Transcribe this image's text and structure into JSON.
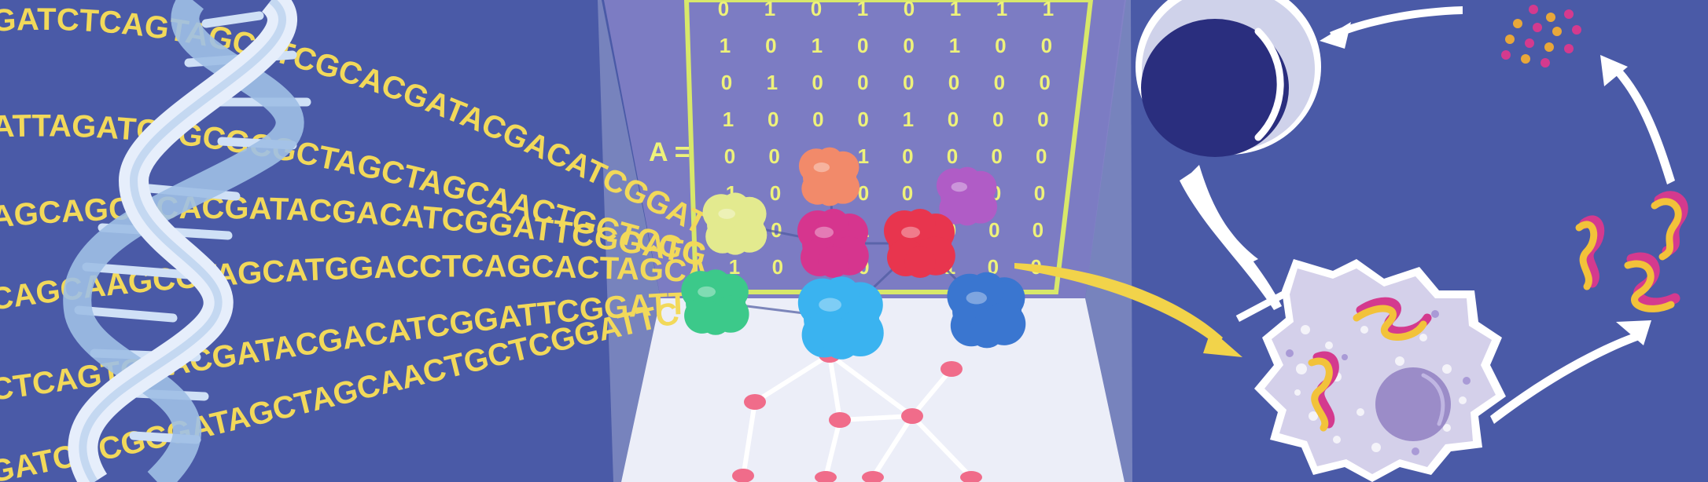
{
  "dna_sequences": [
    "GATCTCAGTAGCATCGCACGATACGACATCGGATTCGGATCAAGCTAGC",
    "ATTAGATCTGCGCGCTAGCTAGCAACTGCTCGGATTCCG",
    "CAGCAAGCCTAGCATGGACCTCAGCACTAGCACCATAC",
    "AGCAGCGCACGATACGACATCGGATTCGGATCAAGCTAGC",
    "CTCAGTGCACGATACGACATCGGATTCGGATTCC",
    "GATCGCGCGATAGCTAGCAACTGCTCGGATTCC"
  ],
  "matrix_label": "A =",
  "matrix_rows": [
    [
      "0",
      "1",
      "0",
      "1",
      "0",
      "1",
      "1",
      "1"
    ],
    [
      "1",
      "0",
      "1",
      "0",
      "0",
      "1",
      "0",
      "0"
    ],
    [
      "0",
      "1",
      "0",
      "0",
      "0",
      "0",
      "0",
      "0"
    ],
    [
      "1",
      "0",
      "0",
      "0",
      "1",
      "0",
      "0",
      "0"
    ],
    [
      "0",
      "0",
      "1",
      "1",
      "0",
      "0",
      "0",
      "0"
    ],
    [
      "1",
      "0",
      "1",
      "0",
      "0",
      "0",
      "0",
      "0"
    ],
    [
      "1",
      "0",
      "0",
      "1",
      "0",
      "0",
      "0",
      "0"
    ],
    [
      "1",
      "0",
      "0",
      "0",
      "0",
      "1",
      "0",
      "0"
    ]
  ],
  "colors": {
    "background": "#4a5aa7",
    "sequence_text": "#f2d95a",
    "panel": "#7a78c4",
    "panel_border": "#d8e86a",
    "floor": "#eceef8",
    "network_node": "#f06c8a",
    "arrow_white": "#ffffff",
    "arrow_yellow": "#f2d34a",
    "t_cell": "#2a2e7e",
    "target_cell": "#d4d0ea"
  },
  "proteins": [
    {
      "name": "yellow-protein",
      "color": "#e3ea8f"
    },
    {
      "name": "orange-protein",
      "color": "#f28a6a"
    },
    {
      "name": "purple-protein",
      "color": "#b05cc6"
    },
    {
      "name": "magenta-protein",
      "color": "#d6358e"
    },
    {
      "name": "red-protein",
      "color": "#e8354e"
    },
    {
      "name": "green-protein",
      "color": "#3cc98a"
    },
    {
      "name": "cyan-protein",
      "color": "#3ab3f0"
    },
    {
      "name": "blue-protein",
      "color": "#3a76d0"
    }
  ]
}
